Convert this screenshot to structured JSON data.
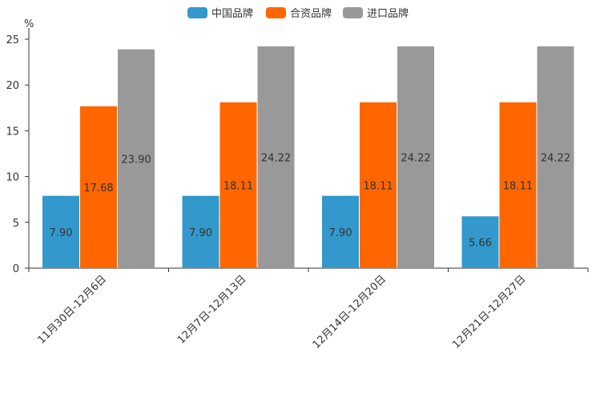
{
  "chart_data": {
    "type": "bar",
    "title": "",
    "xlabel": "",
    "ylabel": "%",
    "ylim": [
      0,
      25
    ],
    "yticks": [
      0,
      5,
      10,
      15,
      20,
      25
    ],
    "grid": false,
    "legend_position": "top-center",
    "categories": [
      "11月30日-12月6日",
      "12月7日-12月13日",
      "12月14日-12月20日",
      "12月21日-12月27日"
    ],
    "series": [
      {
        "name": "中国品牌",
        "color": "#3399cc",
        "values": [
          7.9,
          7.9,
          7.9,
          5.66
        ],
        "labels": [
          "7.90",
          "7.90",
          "7.90",
          "5.66"
        ]
      },
      {
        "name": "合资品牌",
        "color": "#ff6600",
        "values": [
          17.68,
          18.11,
          18.11,
          18.11
        ],
        "labels": [
          "17.68",
          "18.11",
          "18.11",
          "18.11"
        ]
      },
      {
        "name": "进口品牌",
        "color": "#999999",
        "values": [
          23.9,
          24.22,
          24.22,
          24.22
        ],
        "labels": [
          "23.90",
          "24.22",
          "24.22",
          "24.22"
        ]
      }
    ]
  }
}
